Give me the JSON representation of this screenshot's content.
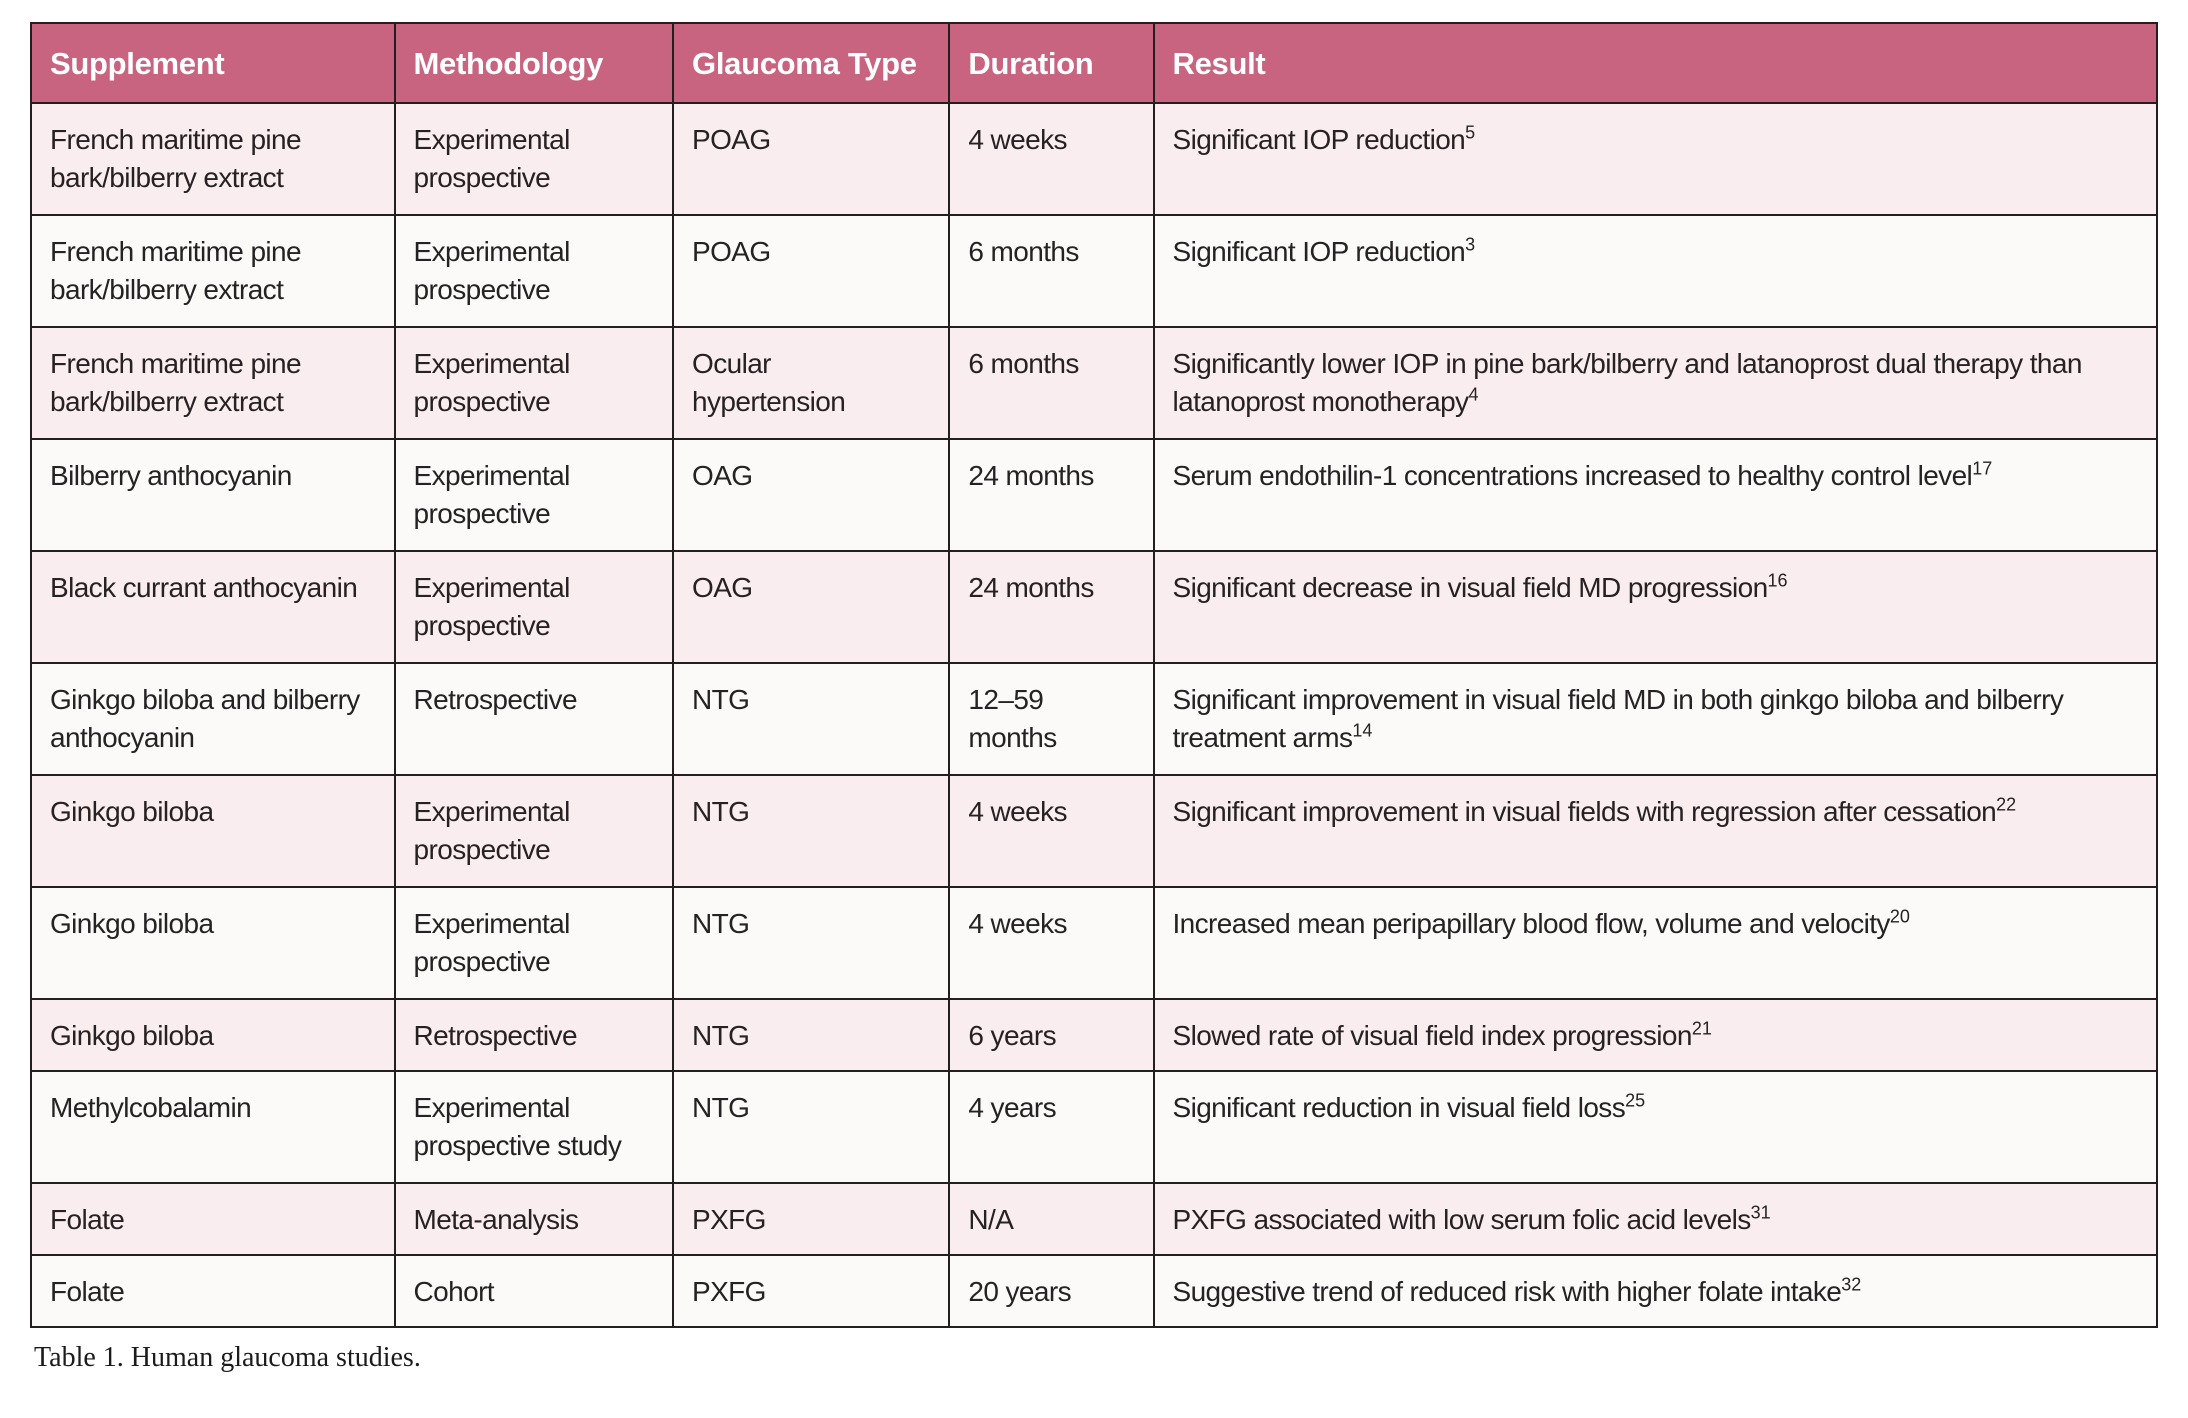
{
  "colors": {
    "header_bg": "#c8647f",
    "row_pink": "#f9edef",
    "row_white": "#fbfaf9",
    "border": "#231f20",
    "text": "#262223"
  },
  "table": {
    "caption": "Table 1. Human glaucoma studies.",
    "columns": [
      "Supplement",
      "Methodology",
      "Glaucoma Type",
      "Duration",
      "Result"
    ],
    "rows": [
      {
        "supplement": "French maritime pine bark/bilberry extract",
        "methodology": "Experimental prospective",
        "glaucoma_type": "POAG",
        "duration": "4 weeks",
        "result": "Significant IOP reduction",
        "ref": "5"
      },
      {
        "supplement": "French maritime pine bark/bilberry extract",
        "methodology": "Experimental prospective",
        "glaucoma_type": "POAG",
        "duration": "6 months",
        "result": "Significant IOP reduction",
        "ref": "3"
      },
      {
        "supplement": "French maritime pine bark/bilberry extract",
        "methodology": "Experimental prospective",
        "glaucoma_type": "Ocular hypertension",
        "duration": "6 months",
        "result": "Significantly lower IOP in pine bark/bilberry and latanoprost dual therapy than latanoprost monotherapy",
        "ref": "4"
      },
      {
        "supplement": "Bilberry anthocyanin",
        "methodology": "Experimental prospective",
        "glaucoma_type": "OAG",
        "duration": "24 months",
        "result": "Serum endothilin-1 concentrations increased to healthy control level",
        "ref": "17"
      },
      {
        "supplement": "Black currant anthocyanin",
        "methodology": "Experimental prospective",
        "glaucoma_type": "OAG",
        "duration": "24 months",
        "result": "Significant decrease in visual field MD progression",
        "ref": "16"
      },
      {
        "supplement": "Ginkgo biloba and bilberry anthocyanin",
        "methodology": "Retrospective",
        "glaucoma_type": "NTG",
        "duration": "12–59 months",
        "result": "Significant improvement in visual field MD in both ginkgo biloba and bilberry treatment arms",
        "ref": "14"
      },
      {
        "supplement": "Ginkgo biloba",
        "methodology": "Experimental prospective",
        "glaucoma_type": "NTG",
        "duration": "4 weeks",
        "result": "Significant improvement in visual fields with regression after cessation",
        "ref": "22"
      },
      {
        "supplement": "Ginkgo biloba",
        "methodology": "Experimental prospective",
        "glaucoma_type": "NTG",
        "duration": "4 weeks",
        "result": "Increased mean peripapillary blood flow, volume and velocity",
        "ref": "20"
      },
      {
        "supplement": "Ginkgo biloba",
        "methodology": "Retrospective",
        "glaucoma_type": "NTG",
        "duration": "6 years",
        "result": "Slowed rate of visual field index progression",
        "ref": "21"
      },
      {
        "supplement": "Methylcobalamin",
        "methodology": "Experimental prospective study",
        "glaucoma_type": "NTG",
        "duration": "4 years",
        "result": "Significant reduction in visual field loss",
        "ref": "25"
      },
      {
        "supplement": "Folate",
        "methodology": "Meta-analysis",
        "glaucoma_type": "PXFG",
        "duration": "N/A",
        "result": "PXFG associated with low serum folic acid levels",
        "ref": "31"
      },
      {
        "supplement": "Folate",
        "methodology": "Cohort",
        "glaucoma_type": "PXFG",
        "duration": "20 years",
        "result": "Suggestive trend of reduced risk with higher folate intake",
        "ref": "32"
      }
    ]
  }
}
